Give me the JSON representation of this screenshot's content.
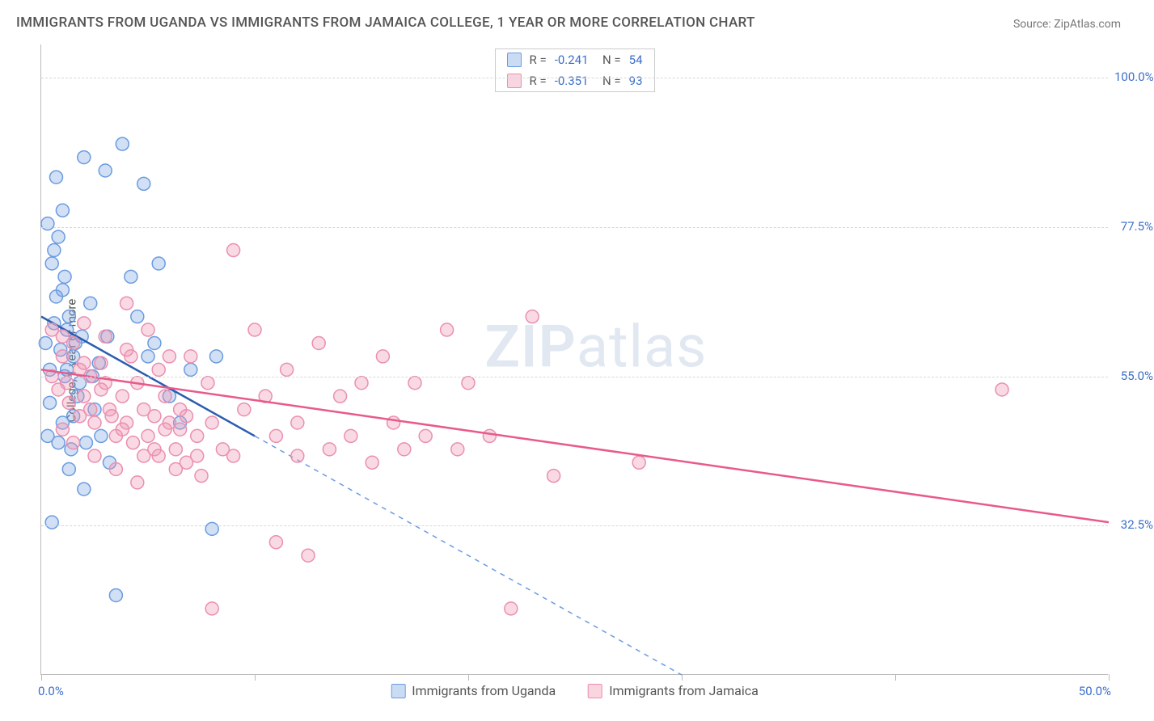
{
  "title": "IMMIGRANTS FROM UGANDA VS IMMIGRANTS FROM JAMAICA COLLEGE, 1 YEAR OR MORE CORRELATION CHART",
  "source": "Source: ZipAtlas.com",
  "watermark_zip": "ZIP",
  "watermark_atlas": "atlas",
  "ylabel": "College, 1 year or more",
  "chart": {
    "type": "scatter",
    "xlim": [
      0,
      50
    ],
    "ylim": [
      10,
      105
    ],
    "yticks": [
      {
        "v": 100.0,
        "label": "100.0%"
      },
      {
        "v": 77.5,
        "label": "77.5%"
      },
      {
        "v": 55.0,
        "label": "55.0%"
      },
      {
        "v": 32.5,
        "label": "32.5%"
      }
    ],
    "xticks": [
      0,
      10,
      20,
      30,
      40,
      50
    ],
    "xtick_labels_shown": {
      "left": "0.0%",
      "right": "50.0%"
    },
    "background_color": "#ffffff",
    "grid_color": "#d8d8d8",
    "axis_color": "#bbbbbb",
    "marker_radius": 8,
    "marker_stroke_width": 1.5,
    "trend_line_width": 2.5,
    "series": [
      {
        "name": "Immigrants from Uganda",
        "R": "-0.241",
        "N": "54",
        "fill": "rgba(123, 167, 226, 0.35)",
        "stroke": "#6b9be0",
        "line_color": "#2a5db0",
        "dash_color": "#6b9be0",
        "trend": {
          "x1": 0,
          "y1": 64,
          "x2": 10,
          "y2": 46
        },
        "trend_dash": {
          "x1": 10,
          "y1": 46,
          "x2": 30,
          "y2": 10
        },
        "points": [
          [
            0.3,
            78
          ],
          [
            0.5,
            72
          ],
          [
            0.7,
            85
          ],
          [
            1.0,
            68
          ],
          [
            1.2,
            62
          ],
          [
            1.5,
            58
          ],
          [
            0.4,
            56
          ],
          [
            0.8,
            76
          ],
          [
            1.1,
            70
          ],
          [
            1.3,
            64
          ],
          [
            1.6,
            60
          ],
          [
            1.8,
            54
          ],
          [
            2.0,
            88
          ],
          [
            2.3,
            66
          ],
          [
            2.5,
            50
          ],
          [
            2.8,
            46
          ],
          [
            3.0,
            86
          ],
          [
            3.2,
            42
          ],
          [
            3.5,
            22
          ],
          [
            1.0,
            48
          ],
          [
            1.4,
            44
          ],
          [
            1.7,
            52
          ],
          [
            2.1,
            45
          ],
          [
            0.6,
            63
          ],
          [
            0.9,
            59
          ],
          [
            1.1,
            55
          ],
          [
            3.8,
            90
          ],
          [
            4.2,
            70
          ],
          [
            4.5,
            64
          ],
          [
            5.0,
            58
          ],
          [
            5.5,
            72
          ],
          [
            6.0,
            52
          ],
          [
            6.5,
            48
          ],
          [
            7.0,
            56
          ],
          [
            8.0,
            32
          ],
          [
            8.2,
            58
          ],
          [
            0.5,
            33
          ],
          [
            2.0,
            38
          ],
          [
            0.3,
            46
          ],
          [
            0.4,
            51
          ],
          [
            0.7,
            67
          ],
          [
            1.9,
            61
          ],
          [
            2.4,
            55
          ],
          [
            0.2,
            60
          ],
          [
            0.6,
            74
          ],
          [
            1.0,
            80
          ],
          [
            1.2,
            56
          ],
          [
            1.5,
            49
          ],
          [
            2.7,
            57
          ],
          [
            3.1,
            61
          ],
          [
            0.8,
            45
          ],
          [
            1.3,
            41
          ],
          [
            4.8,
            84
          ],
          [
            5.3,
            60
          ]
        ]
      },
      {
        "name": "Immigrants from Jamaica",
        "R": "-0.351",
        "N": "93",
        "fill": "rgba(239, 149, 177, 0.35)",
        "stroke": "#ea8fb0",
        "line_color": "#e85a8a",
        "trend": {
          "x1": 0,
          "y1": 56,
          "x2": 50,
          "y2": 33
        },
        "points": [
          [
            0.5,
            62
          ],
          [
            1.0,
            58
          ],
          [
            1.2,
            54
          ],
          [
            1.5,
            60
          ],
          [
            1.8,
            56
          ],
          [
            2.0,
            52
          ],
          [
            2.3,
            50
          ],
          [
            2.5,
            48
          ],
          [
            2.8,
            57
          ],
          [
            3.0,
            54
          ],
          [
            3.2,
            50
          ],
          [
            3.5,
            46
          ],
          [
            3.8,
            52
          ],
          [
            4.0,
            48
          ],
          [
            4.2,
            58
          ],
          [
            4.5,
            54
          ],
          [
            4.8,
            50
          ],
          [
            5.0,
            46
          ],
          [
            5.3,
            44
          ],
          [
            5.5,
            56
          ],
          [
            5.8,
            52
          ],
          [
            6.0,
            48
          ],
          [
            6.3,
            44
          ],
          [
            6.5,
            50
          ],
          [
            6.8,
            42
          ],
          [
            7.0,
            58
          ],
          [
            7.3,
            46
          ],
          [
            7.5,
            40
          ],
          [
            7.8,
            54
          ],
          [
            8.0,
            48
          ],
          [
            8.5,
            44
          ],
          [
            9.0,
            74
          ],
          [
            9.5,
            50
          ],
          [
            10.0,
            62
          ],
          [
            10.5,
            52
          ],
          [
            11.0,
            46
          ],
          [
            11.5,
            56
          ],
          [
            12.0,
            48
          ],
          [
            12.5,
            28
          ],
          [
            13.0,
            60
          ],
          [
            13.5,
            44
          ],
          [
            14.0,
            52
          ],
          [
            14.5,
            46
          ],
          [
            15.0,
            54
          ],
          [
            15.5,
            42
          ],
          [
            16.0,
            58
          ],
          [
            16.5,
            48
          ],
          [
            17.0,
            44
          ],
          [
            17.5,
            54
          ],
          [
            18.0,
            46
          ],
          [
            19.0,
            62
          ],
          [
            19.5,
            44
          ],
          [
            20.0,
            54
          ],
          [
            21.0,
            46
          ],
          [
            22.0,
            20
          ],
          [
            23.0,
            64
          ],
          [
            24.0,
            40
          ],
          [
            28.0,
            42
          ],
          [
            2.0,
            63
          ],
          [
            3.0,
            61
          ],
          [
            4.0,
            59
          ],
          [
            1.0,
            47
          ],
          [
            1.5,
            45
          ],
          [
            2.5,
            43
          ],
          [
            3.5,
            41
          ],
          [
            4.5,
            39
          ],
          [
            5.5,
            43
          ],
          [
            6.5,
            47
          ],
          [
            0.8,
            53
          ],
          [
            1.3,
            51
          ],
          [
            1.8,
            49
          ],
          [
            2.3,
            55
          ],
          [
            2.8,
            53
          ],
          [
            3.3,
            49
          ],
          [
            3.8,
            47
          ],
          [
            4.3,
            45
          ],
          [
            4.8,
            43
          ],
          [
            5.3,
            49
          ],
          [
            5.8,
            47
          ],
          [
            6.3,
            41
          ],
          [
            6.8,
            49
          ],
          [
            7.3,
            43
          ],
          [
            1.0,
            61
          ],
          [
            0.5,
            55
          ],
          [
            2.0,
            57
          ],
          [
            9.0,
            43
          ],
          [
            8.0,
            20
          ],
          [
            45.0,
            53
          ],
          [
            11.0,
            30
          ],
          [
            12.0,
            43
          ],
          [
            4.0,
            66
          ],
          [
            5.0,
            62
          ],
          [
            6.0,
            58
          ]
        ]
      }
    ]
  },
  "swatch_colors": {
    "uganda_fill": "rgba(123,167,226,0.4)",
    "uganda_border": "#6b9be0",
    "jamaica_fill": "rgba(239,149,177,0.4)",
    "jamaica_border": "#ea8fb0"
  },
  "stat_value_color": "#3b6fc9"
}
